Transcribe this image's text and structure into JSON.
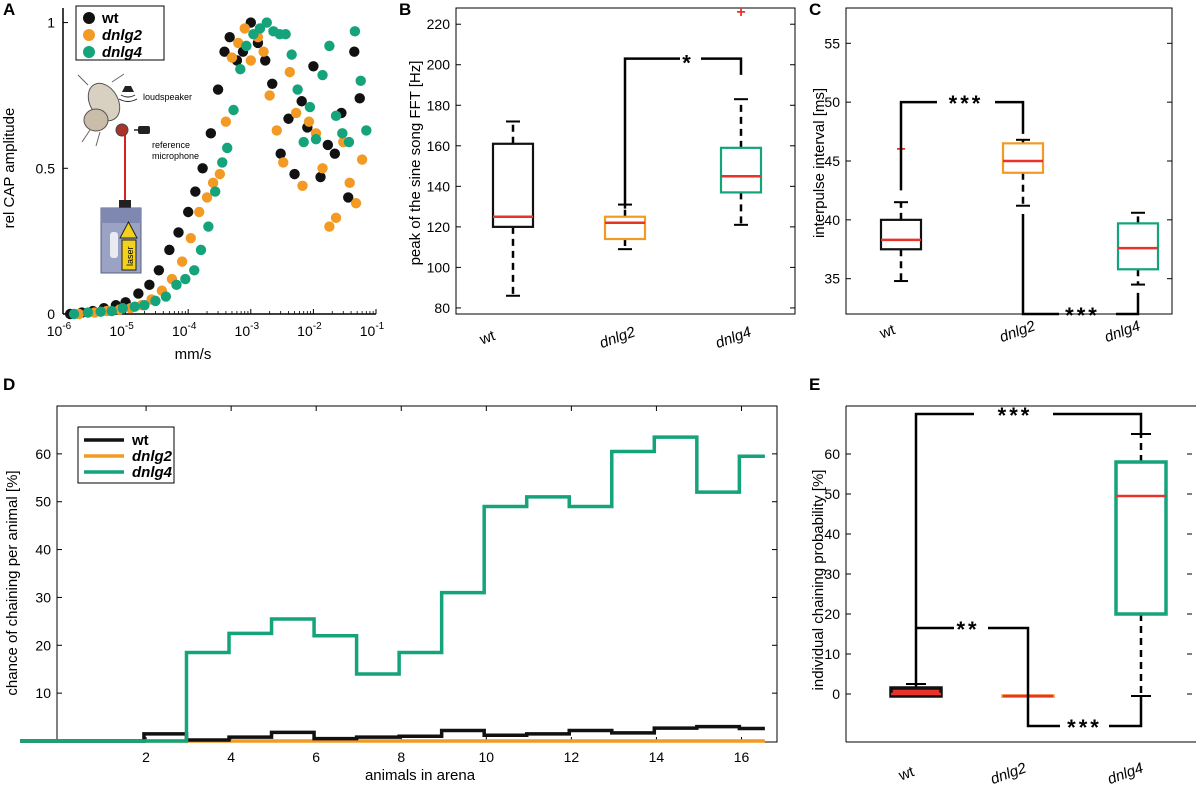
{
  "colors": {
    "wt": "#111111",
    "dnlg2": "#f39a24",
    "dnlg4": "#14a37a",
    "median": "#e8332b"
  },
  "panel_labels": [
    "A",
    "B",
    "C",
    "D",
    "E"
  ],
  "inset": {
    "loudspeaker": "loudspeaker",
    "microphone_line1": "reference",
    "microphone_line2": "microphone",
    "laser": "laser"
  },
  "chart_data": [
    {
      "panel": "A",
      "type": "scatter",
      "xlabel": "mm/s",
      "ylabel": "rel CAP amplitude",
      "xscale": "log",
      "xlim": [
        1e-06,
        0.1
      ],
      "ylim": [
        0,
        1.05
      ],
      "xticks": [
        {
          "value": 1e-06,
          "base": "10",
          "exp": "-6"
        },
        {
          "value": 1e-05,
          "base": "10",
          "exp": "-5"
        },
        {
          "value": 0.0001,
          "base": "10",
          "exp": "-4"
        },
        {
          "value": 0.001,
          "base": "10",
          "exp": "-3"
        },
        {
          "value": 0.01,
          "base": "10",
          "exp": "-2"
        },
        {
          "value": 0.1,
          "base": "10",
          "exp": "-1"
        }
      ],
      "yticks": [
        {
          "value": 0,
          "label": "0"
        },
        {
          "value": 0.5,
          "label": "0.5"
        },
        {
          "value": 1,
          "label": "1"
        }
      ],
      "legend": [
        "wt",
        "dnlg2",
        "dnlg4"
      ],
      "series": [
        {
          "name": "wt",
          "color": "#111111",
          "points": [
            [
              1.3e-06,
              0.0
            ],
            [
              2e-06,
              0.005
            ],
            [
              3e-06,
              0.01
            ],
            [
              4.5e-06,
              0.02
            ],
            [
              7e-06,
              0.03
            ],
            [
              1e-05,
              0.04
            ],
            [
              1.6e-05,
              0.07
            ],
            [
              2.4e-05,
              0.1
            ],
            [
              3.4e-05,
              0.15
            ],
            [
              5e-05,
              0.22
            ],
            [
              7e-05,
              0.28
            ],
            [
              0.0001,
              0.35
            ],
            [
              0.00013,
              0.42
            ],
            [
              0.00017,
              0.5
            ],
            [
              0.00023,
              0.62
            ],
            [
              0.0003,
              0.77
            ],
            [
              0.00038,
              0.9
            ],
            [
              0.00046,
              0.95
            ],
            [
              0.0006,
              0.87
            ],
            [
              0.00075,
              0.9
            ],
            [
              0.001,
              1.0
            ],
            [
              0.0013,
              0.93
            ],
            [
              0.0017,
              0.87
            ],
            [
              0.0022,
              0.79
            ],
            [
              0.003,
              0.55
            ],
            [
              0.004,
              0.67
            ],
            [
              0.005,
              0.48
            ],
            [
              0.0065,
              0.73
            ],
            [
              0.008,
              0.64
            ],
            [
              0.01,
              0.85
            ],
            [
              0.013,
              0.47
            ],
            [
              0.017,
              0.58
            ],
            [
              0.022,
              0.55
            ],
            [
              0.028,
              0.69
            ],
            [
              0.036,
              0.4
            ],
            [
              0.045,
              0.9
            ],
            [
              0.055,
              0.74
            ]
          ]
        },
        {
          "name": "dnlg2",
          "color": "#f39a24",
          "points": [
            [
              1.8e-06,
              0.0
            ],
            [
              3.2e-06,
              0.005
            ],
            [
              5e-06,
              0.01
            ],
            [
              8e-06,
              0.015
            ],
            [
              1.2e-05,
              0.02
            ],
            [
              1.8e-05,
              0.03
            ],
            [
              2.6e-05,
              0.05
            ],
            [
              3.8e-05,
              0.08
            ],
            [
              5.5e-05,
              0.12
            ],
            [
              8e-05,
              0.18
            ],
            [
              0.00011,
              0.26
            ],
            [
              0.00015,
              0.35
            ],
            [
              0.0002,
              0.4
            ],
            [
              0.00025,
              0.45
            ],
            [
              0.00032,
              0.48
            ],
            [
              0.0004,
              0.66
            ],
            [
              0.0005,
              0.88
            ],
            [
              0.00063,
              0.93
            ],
            [
              0.0008,
              0.98
            ],
            [
              0.001,
              0.87
            ],
            [
              0.0013,
              0.95
            ],
            [
              0.0016,
              0.9
            ],
            [
              0.002,
              0.75
            ],
            [
              0.0026,
              0.63
            ],
            [
              0.0033,
              0.52
            ],
            [
              0.0042,
              0.83
            ],
            [
              0.0053,
              0.69
            ],
            [
              0.0067,
              0.44
            ],
            [
              0.0085,
              0.66
            ],
            [
              0.011,
              0.62
            ],
            [
              0.014,
              0.5
            ],
            [
              0.018,
              0.3
            ],
            [
              0.023,
              0.33
            ],
            [
              0.03,
              0.59
            ],
            [
              0.038,
              0.45
            ],
            [
              0.048,
              0.38
            ],
            [
              0.06,
              0.53
            ]
          ]
        },
        {
          "name": "dnlg4",
          "color": "#14a37a",
          "points": [
            [
              1.5e-06,
              0.0
            ],
            [
              2.5e-06,
              0.005
            ],
            [
              4e-06,
              0.008
            ],
            [
              6e-06,
              0.01
            ],
            [
              9e-06,
              0.02
            ],
            [
              1.4e-05,
              0.025
            ],
            [
              2e-05,
              0.03
            ],
            [
              3e-05,
              0.045
            ],
            [
              4.4e-05,
              0.06
            ],
            [
              6.5e-05,
              0.1
            ],
            [
              9e-05,
              0.12
            ],
            [
              0.000125,
              0.15
            ],
            [
              0.00016,
              0.22
            ],
            [
              0.00021,
              0.3
            ],
            [
              0.00027,
              0.42
            ],
            [
              0.00035,
              0.52
            ],
            [
              0.00042,
              0.57
            ],
            [
              0.00053,
              0.7
            ],
            [
              0.00068,
              0.84
            ],
            [
              0.00085,
              0.92
            ],
            [
              0.0011,
              0.96
            ],
            [
              0.0014,
              0.98
            ],
            [
              0.0018,
              1.0
            ],
            [
              0.0023,
              0.97
            ],
            [
              0.0029,
              0.96
            ],
            [
              0.0036,
              0.96
            ],
            [
              0.0045,
              0.89
            ],
            [
              0.0056,
              0.77
            ],
            [
              0.007,
              0.59
            ],
            [
              0.0088,
              0.71
            ],
            [
              0.011,
              0.6
            ],
            [
              0.014,
              0.82
            ],
            [
              0.018,
              0.92
            ],
            [
              0.023,
              0.68
            ],
            [
              0.029,
              0.62
            ],
            [
              0.037,
              0.59
            ],
            [
              0.046,
              0.97
            ],
            [
              0.057,
              0.8
            ],
            [
              0.07,
              0.63
            ]
          ]
        }
      ]
    },
    {
      "panel": "B",
      "type": "boxplot",
      "ylabel": "peak of the sine song FFT [Hz]",
      "ylim": [
        77,
        228
      ],
      "yticks": [
        80,
        100,
        120,
        140,
        160,
        180,
        200,
        220
      ],
      "categories": [
        "wt",
        "dnlg2",
        "dnlg4"
      ],
      "boxes": [
        {
          "name": "wt",
          "color": "#111111",
          "whisker_low": 86,
          "q1": 120,
          "median": 125,
          "q3": 161,
          "whisker_high": 172,
          "outliers": []
        },
        {
          "name": "dnlg2",
          "color": "#f39a24",
          "whisker_low": 109,
          "q1": 114,
          "median": 122,
          "q3": 125,
          "whisker_high": 131,
          "outliers": []
        },
        {
          "name": "dnlg4",
          "color": "#14a37a",
          "whisker_low": 121,
          "q1": 137,
          "median": 145,
          "q3": 159,
          "whisker_high": 183,
          "outliers": [
            226
          ]
        }
      ],
      "significance": [
        {
          "between": [
            "dnlg2",
            "dnlg4"
          ],
          "label": "*"
        }
      ]
    },
    {
      "panel": "C",
      "type": "boxplot",
      "ylabel": "interpulse interval [ms]",
      "ylim": [
        32,
        58
      ],
      "yticks": [
        35,
        40,
        45,
        50,
        55
      ],
      "categories": [
        "wt",
        "dnlg2",
        "dnlg4"
      ],
      "boxes": [
        {
          "name": "wt",
          "color": "#111111",
          "whisker_low": 34.8,
          "q1": 37.5,
          "median": 38.3,
          "q3": 40.0,
          "whisker_high": 41.5,
          "outliers": [
            46
          ]
        },
        {
          "name": "dnlg2",
          "color": "#f39a24",
          "whisker_low": 41.2,
          "q1": 44.0,
          "median": 45.0,
          "q3": 46.5,
          "whisker_high": 46.8,
          "outliers": []
        },
        {
          "name": "dnlg4",
          "color": "#14a37a",
          "whisker_low": 34.5,
          "q1": 35.8,
          "median": 37.6,
          "q3": 39.7,
          "whisker_high": 40.6,
          "outliers": []
        }
      ],
      "significance": [
        {
          "between": [
            "wt",
            "dnlg2"
          ],
          "label": "***"
        },
        {
          "between": [
            "dnlg2",
            "dnlg4"
          ],
          "label": "***"
        }
      ]
    },
    {
      "panel": "D",
      "type": "step",
      "xlabel": "animals in arena",
      "ylabel": "chance of chaining per animal [%]",
      "xlim": [
        0,
        16.6
      ],
      "ylim": [
        0,
        70
      ],
      "xticks": [
        2,
        4,
        6,
        8,
        10,
        12,
        14,
        16
      ],
      "yticks": [
        10,
        20,
        30,
        40,
        50,
        60
      ],
      "legend": [
        "wt",
        "dnlg2",
        "dnlg4"
      ],
      "edges": [
        0,
        0.95,
        1.95,
        2.95,
        3.95,
        4.95,
        5.95,
        6.95,
        7.95,
        8.95,
        9.95,
        10.95,
        11.95,
        12.95,
        13.95,
        14.95,
        15.95,
        16.55
      ],
      "series": [
        {
          "name": "wt",
          "color": "#111111",
          "values": [
            0,
            0,
            1.5,
            0.2,
            0.8,
            1.8,
            0.5,
            0.8,
            1.0,
            2.2,
            1.2,
            1.5,
            2.2,
            1.7,
            2.7,
            3.0,
            2.6
          ]
        },
        {
          "name": "dnlg2",
          "color": "#f39a24",
          "values": [
            0,
            0,
            0,
            0,
            0,
            0,
            0,
            0,
            0,
            0,
            0,
            0,
            0,
            0,
            0,
            0,
            0
          ]
        },
        {
          "name": "dnlg4",
          "color": "#14a37a",
          "values": [
            0,
            0,
            0,
            18.5,
            22.5,
            25.5,
            22,
            14,
            18.5,
            31,
            49,
            51,
            49,
            60.5,
            63.5,
            52,
            59.5
          ]
        }
      ]
    },
    {
      "panel": "E",
      "type": "boxplot",
      "ylabel": "individual chaining probability [%]",
      "ylim": [
        -12,
        72
      ],
      "yticks": [
        0,
        10,
        20,
        30,
        40,
        50,
        60
      ],
      "categories": [
        "wt",
        "dnlg2",
        "dnlg4"
      ],
      "boxes": [
        {
          "name": "wt",
          "color": "#111111",
          "whisker_low": -0.5,
          "q1": -0.5,
          "median": 0,
          "q3": 1.5,
          "whisker_high": 2.5,
          "outliers": [],
          "fill": "#e8332b"
        },
        {
          "name": "dnlg2",
          "color": "#f39a24",
          "whisker_low": -0.5,
          "q1": -0.5,
          "median": -0.5,
          "q3": -0.5,
          "whisker_high": -0.5,
          "outliers": []
        },
        {
          "name": "dnlg4",
          "color": "#14a37a",
          "whisker_low": -0.5,
          "q1": 20,
          "median": 49.5,
          "q3": 58,
          "whisker_high": 65,
          "outliers": []
        }
      ],
      "significance": [
        {
          "between": [
            "wt",
            "dnlg4"
          ],
          "label": "***"
        },
        {
          "between": [
            "wt",
            "dnlg2"
          ],
          "label": "**"
        },
        {
          "between": [
            "dnlg2",
            "dnlg4"
          ],
          "label": "***"
        }
      ]
    }
  ]
}
